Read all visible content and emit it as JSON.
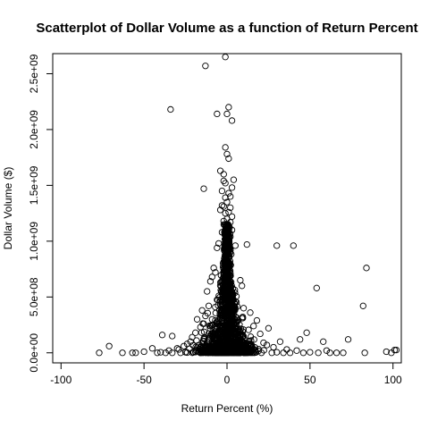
{
  "chart_data": {
    "type": "scatter",
    "title": "Scatterplot of Dollar Volume as a function of Return Percent",
    "xlabel": "Return Percent (%)",
    "ylabel": "Dollar Volume ($)",
    "xlim": [
      -105,
      105
    ],
    "ylim": [
      -90000000,
      2680000000
    ],
    "x_ticks": [
      -100,
      -50,
      0,
      50,
      100
    ],
    "x_tick_labels": [
      "-100",
      "-50",
      "0",
      "50",
      "100"
    ],
    "y_ticks": [
      0,
      500000000,
      1000000000,
      1500000000,
      2000000000,
      2500000000
    ],
    "y_tick_labels": [
      "0.0e+00",
      "5.0e+08",
      "1.0e+09",
      "1.5e+09",
      "2.0e+09",
      "2.5e+09"
    ],
    "grid": false,
    "legend": "none",
    "marker": "open-circle",
    "colors": {
      "point": "#000000",
      "axis": "#000000",
      "background": "#ffffff"
    },
    "points": [
      [
        -1,
        2650000000
      ],
      [
        -13,
        2570000000
      ],
      [
        1,
        2200000000
      ],
      [
        -34,
        2180000000
      ],
      [
        -6,
        2140000000
      ],
      [
        0,
        2140000000
      ],
      [
        3,
        2080000000
      ],
      [
        -1,
        1840000000
      ],
      [
        0,
        1780000000
      ],
      [
        1,
        1740000000
      ],
      [
        -4,
        1630000000
      ],
      [
        -2,
        1600000000
      ],
      [
        4,
        1550000000
      ],
      [
        -2,
        1540000000
      ],
      [
        -1,
        1520000000
      ],
      [
        -14,
        1470000000
      ],
      [
        3,
        1480000000
      ],
      [
        -3,
        1450000000
      ],
      [
        1,
        1430000000
      ],
      [
        2,
        1400000000
      ],
      [
        -1,
        1390000000
      ],
      [
        0,
        1350000000
      ],
      [
        -3,
        1320000000
      ],
      [
        -2,
        1310000000
      ],
      [
        2,
        1300000000
      ],
      [
        -4,
        1280000000
      ],
      [
        1,
        1260000000
      ],
      [
        -1,
        1250000000
      ],
      [
        3,
        1220000000
      ],
      [
        0,
        1200000000
      ],
      [
        -2,
        1180000000
      ],
      [
        2,
        1170000000
      ],
      [
        -1,
        1150000000
      ],
      [
        1,
        1130000000
      ],
      [
        3,
        1100000000
      ],
      [
        -3,
        1080000000
      ],
      [
        0,
        1060000000
      ],
      [
        2,
        1040000000
      ],
      [
        -1,
        1020000000
      ],
      [
        1,
        1000000000
      ],
      [
        -5,
        980000000
      ],
      [
        5,
        960000000
      ],
      [
        30,
        960000000
      ],
      [
        40,
        960000000
      ],
      [
        12,
        970000000
      ],
      [
        -6,
        940000000
      ],
      [
        -8,
        760000000
      ],
      [
        -7,
        720000000
      ],
      [
        -9,
        680000000
      ],
      [
        -10,
        640000000
      ],
      [
        8,
        650000000
      ],
      [
        9,
        600000000
      ],
      [
        -12,
        550000000
      ],
      [
        84,
        760000000
      ],
      [
        54,
        580000000
      ],
      [
        82,
        420000000
      ],
      [
        -11,
        420000000
      ],
      [
        10,
        400000000
      ],
      [
        -15,
        380000000
      ],
      [
        14,
        360000000
      ],
      [
        -13,
        330000000
      ],
      [
        -18,
        300000000
      ],
      [
        18,
        290000000
      ],
      [
        -14,
        260000000
      ],
      [
        16,
        240000000
      ],
      [
        -16,
        230000000
      ],
      [
        25,
        220000000
      ],
      [
        -19,
        180000000
      ],
      [
        20,
        170000000
      ],
      [
        -21,
        140000000
      ],
      [
        -39,
        160000000
      ],
      [
        -33,
        150000000
      ],
      [
        48,
        180000000
      ],
      [
        73,
        120000000
      ],
      [
        32,
        100000000
      ],
      [
        58,
        100000000
      ],
      [
        44,
        120000000
      ],
      [
        -22,
        100000000
      ],
      [
        22,
        90000000
      ],
      [
        -24,
        80000000
      ],
      [
        24,
        70000000
      ],
      [
        -26,
        60000000
      ],
      [
        28,
        50000000
      ],
      [
        -30,
        40000000
      ],
      [
        -71,
        60000000
      ],
      [
        -45,
        40000000
      ],
      [
        -29,
        30000000
      ],
      [
        36,
        30000000
      ],
      [
        -35,
        20000000
      ],
      [
        60,
        20000000
      ],
      [
        42,
        20000000
      ],
      [
        -77,
        0
      ],
      [
        -63,
        0
      ],
      [
        -57,
        0
      ],
      [
        -55,
        0
      ],
      [
        -50,
        10000000
      ],
      [
        -42,
        0
      ],
      [
        -40,
        5000000
      ],
      [
        -37,
        0
      ],
      [
        -33,
        0
      ],
      [
        -28,
        0
      ],
      [
        -25,
        5000000
      ],
      [
        27,
        0
      ],
      [
        30,
        5000000
      ],
      [
        34,
        0
      ],
      [
        38,
        0
      ],
      [
        46,
        0
      ],
      [
        50,
        5000000
      ],
      [
        55,
        0
      ],
      [
        62,
        0
      ],
      [
        66,
        0
      ],
      [
        70,
        0
      ],
      [
        83,
        0
      ],
      [
        96,
        10000000
      ],
      [
        99,
        0
      ],
      [
        101,
        25000000
      ],
      [
        102,
        25000000
      ]
    ]
  }
}
